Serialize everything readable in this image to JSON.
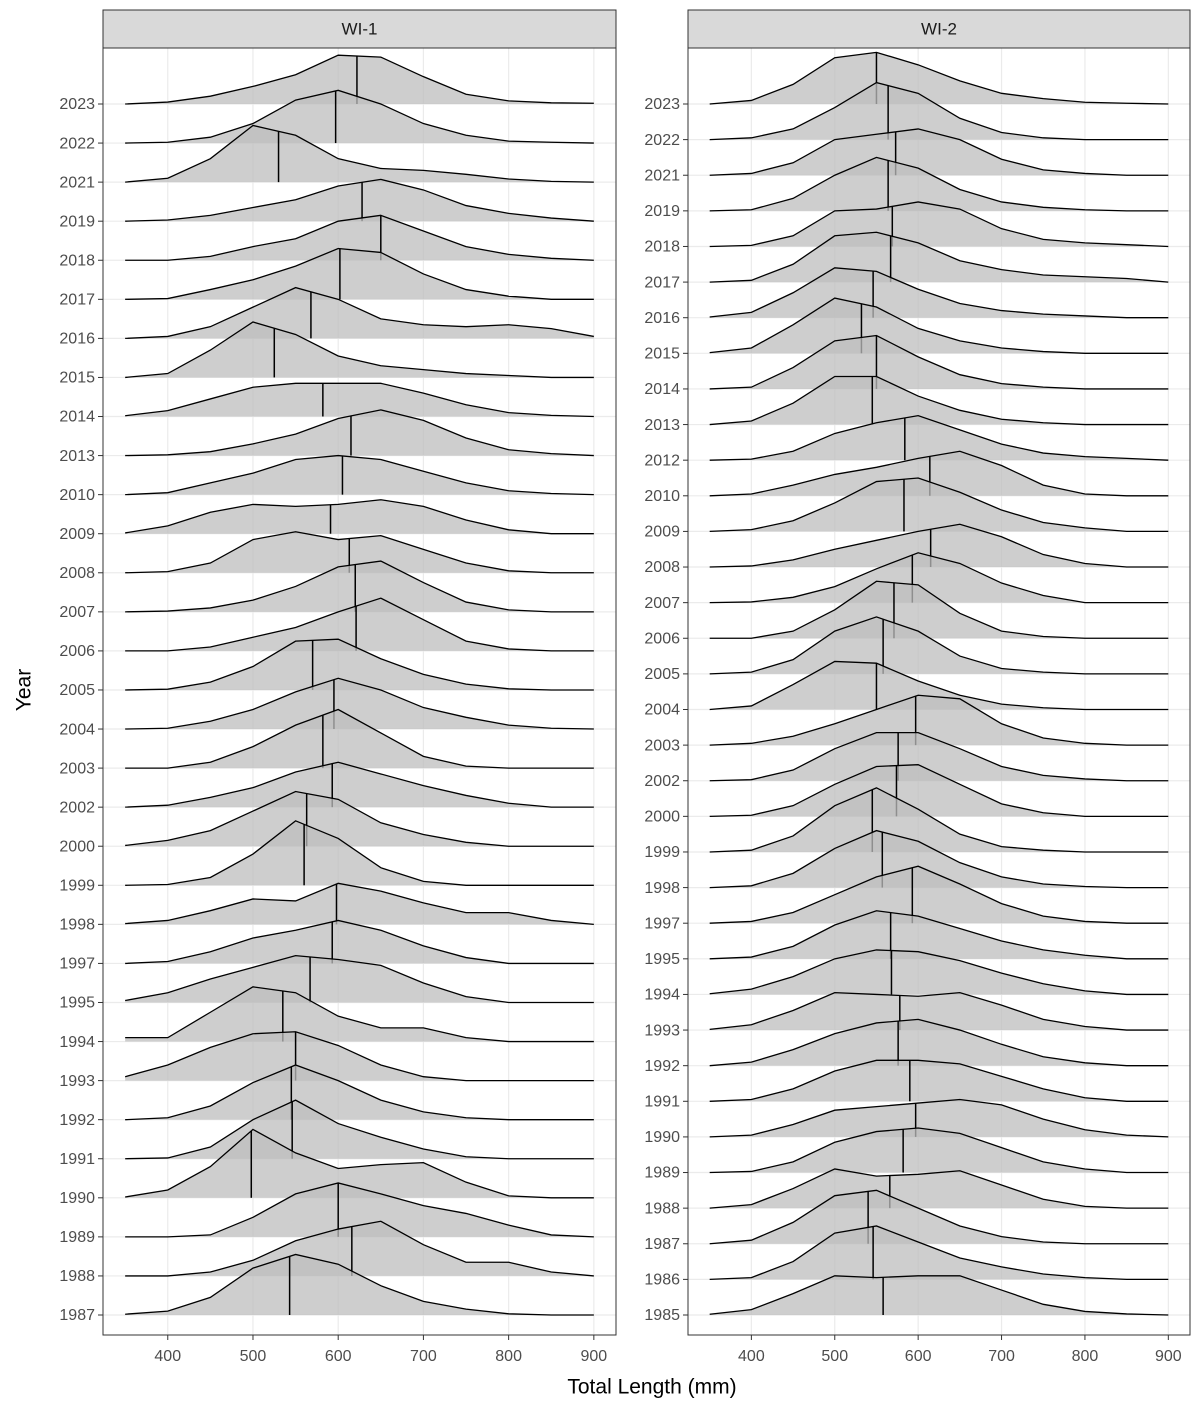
{
  "chart_data": {
    "type": "ridgeline",
    "xlabel": "Total Length (mm)",
    "ylabel": "Year",
    "xlim": [
      324,
      926
    ],
    "xticks": [
      400,
      500,
      600,
      700,
      800,
      900
    ],
    "grid": true,
    "fill": "#bdbdbd",
    "line_color": "#000000",
    "density_x": [
      350,
      400,
      450,
      500,
      550,
      600,
      650,
      700,
      750,
      800,
      850,
      900
    ],
    "panels": [
      {
        "title": "WI-1",
        "categories": [
          "2023",
          "2022",
          "2021",
          "2019",
          "2018",
          "2017",
          "2016",
          "2015",
          "2014",
          "2013",
          "2010",
          "2009",
          "2008",
          "2007",
          "2006",
          "2005",
          "2004",
          "2003",
          "2002",
          "2000",
          "1999",
          "1998",
          "1997",
          "1995",
          "1994",
          "1993",
          "1992",
          "1991",
          "1990",
          "1989",
          "1988",
          "1987"
        ],
        "medians": [
          622,
          597,
          530,
          628,
          650,
          602,
          568,
          525,
          582,
          615,
          605,
          591,
          613,
          620,
          621,
          570,
          595,
          582,
          593,
          563,
          560,
          598,
          593,
          567,
          535,
          550,
          545,
          546,
          498,
          600,
          616,
          543
        ],
        "densities": [
          [
            0,
            0.05,
            0.2,
            0.45,
            0.75,
            1.25,
            1.2,
            0.7,
            0.25,
            0.08,
            0.03,
            0.02
          ],
          [
            0,
            0.02,
            0.15,
            0.5,
            1.1,
            1.35,
            1.0,
            0.5,
            0.2,
            0.05,
            0.02,
            0
          ],
          [
            0,
            0.1,
            0.6,
            1.45,
            1.2,
            0.6,
            0.35,
            0.3,
            0.2,
            0.08,
            0.02,
            0
          ],
          [
            0,
            0.03,
            0.15,
            0.35,
            0.55,
            0.9,
            1.07,
            0.8,
            0.4,
            0.2,
            0.08,
            0
          ],
          [
            0,
            0,
            0.1,
            0.35,
            0.55,
            1.0,
            1.15,
            0.75,
            0.35,
            0.15,
            0.05,
            0
          ],
          [
            0,
            0.02,
            0.25,
            0.5,
            0.85,
            1.3,
            1.2,
            0.65,
            0.25,
            0.08,
            0,
            0
          ],
          [
            0,
            0.05,
            0.3,
            0.8,
            1.3,
            1.0,
            0.5,
            0.35,
            0.3,
            0.35,
            0.25,
            0.05
          ],
          [
            0,
            0.1,
            0.7,
            1.42,
            1.1,
            0.55,
            0.3,
            0.2,
            0.1,
            0.05,
            0,
            0
          ],
          [
            0.02,
            0.15,
            0.45,
            0.75,
            0.85,
            0.85,
            0.85,
            0.6,
            0.3,
            0.1,
            0.03,
            0
          ],
          [
            0,
            0.02,
            0.1,
            0.3,
            0.55,
            0.95,
            1.17,
            0.9,
            0.45,
            0.15,
            0.05,
            0
          ],
          [
            0,
            0.05,
            0.3,
            0.55,
            0.9,
            1.0,
            0.9,
            0.6,
            0.3,
            0.1,
            0.03,
            0
          ],
          [
            0.02,
            0.2,
            0.55,
            0.75,
            0.7,
            0.75,
            0.87,
            0.7,
            0.35,
            0.1,
            0,
            0
          ],
          [
            0,
            0.03,
            0.25,
            0.85,
            1.05,
            0.85,
            0.95,
            0.6,
            0.25,
            0.05,
            0,
            0
          ],
          [
            0,
            0.02,
            0.1,
            0.3,
            0.65,
            1.15,
            1.3,
            0.75,
            0.25,
            0.05,
            0,
            0
          ],
          [
            0,
            0,
            0.1,
            0.35,
            0.6,
            1.0,
            1.35,
            0.8,
            0.25,
            0.05,
            0,
            0
          ],
          [
            0,
            0.02,
            0.2,
            0.6,
            1.25,
            1.3,
            0.8,
            0.4,
            0.15,
            0.03,
            0,
            0
          ],
          [
            0,
            0.02,
            0.2,
            0.5,
            0.95,
            1.3,
            1.0,
            0.55,
            0.3,
            0.1,
            0.02,
            0
          ],
          [
            0,
            0,
            0.15,
            0.55,
            1.1,
            1.5,
            0.9,
            0.3,
            0.05,
            0,
            0,
            0
          ],
          [
            0,
            0.05,
            0.25,
            0.5,
            0.9,
            1.15,
            0.85,
            0.55,
            0.3,
            0.1,
            0,
            0
          ],
          [
            0.02,
            0.15,
            0.4,
            0.9,
            1.4,
            1.2,
            0.6,
            0.3,
            0.1,
            0,
            0,
            0
          ],
          [
            0,
            0.02,
            0.2,
            0.8,
            1.65,
            1.2,
            0.45,
            0.1,
            0,
            0,
            0,
            0
          ],
          [
            0.02,
            0.1,
            0.35,
            0.65,
            0.6,
            1.05,
            0.85,
            0.55,
            0.3,
            0.3,
            0.1,
            0
          ],
          [
            0,
            0.05,
            0.3,
            0.65,
            0.85,
            1.1,
            0.85,
            0.45,
            0.15,
            0,
            0,
            0
          ],
          [
            0.05,
            0.25,
            0.6,
            0.9,
            1.2,
            1.1,
            0.95,
            0.5,
            0.15,
            0,
            0,
            0
          ],
          [
            0.1,
            0.1,
            0.75,
            1.4,
            1.25,
            0.65,
            0.35,
            0.35,
            0.1,
            0,
            0,
            0
          ],
          [
            0.1,
            0.4,
            0.85,
            1.2,
            1.25,
            0.9,
            0.4,
            0.1,
            0,
            0,
            0,
            0
          ],
          [
            0,
            0.05,
            0.35,
            0.95,
            1.4,
            1.0,
            0.5,
            0.2,
            0.05,
            0,
            0,
            0
          ],
          [
            0,
            0.02,
            0.3,
            1.0,
            1.5,
            0.9,
            0.55,
            0.25,
            0.05,
            0,
            0,
            0
          ],
          [
            0.02,
            0.2,
            0.8,
            1.75,
            1.15,
            0.75,
            0.85,
            0.9,
            0.4,
            0.05,
            0,
            0
          ],
          [
            0,
            0,
            0.05,
            0.5,
            1.1,
            1.38,
            1.1,
            0.8,
            0.6,
            0.3,
            0.05,
            0
          ],
          [
            0,
            0,
            0.1,
            0.4,
            0.9,
            1.2,
            1.4,
            0.8,
            0.35,
            0.35,
            0.1,
            0
          ],
          [
            0.02,
            0.1,
            0.45,
            1.2,
            1.55,
            1.3,
            0.75,
            0.35,
            0.15,
            0.03,
            0,
            0
          ]
        ]
      },
      {
        "title": "WI-2",
        "categories": [
          "2023",
          "2022",
          "2021",
          "2019",
          "2018",
          "2017",
          "2016",
          "2015",
          "2014",
          "2013",
          "2012",
          "2010",
          "2009",
          "2008",
          "2007",
          "2006",
          "2005",
          "2004",
          "2003",
          "2002",
          "2000",
          "1999",
          "1998",
          "1997",
          "1995",
          "1994",
          "1993",
          "1992",
          "1991",
          "1990",
          "1989",
          "1988",
          "1987",
          "1986",
          "1985"
        ],
        "medians": [
          550,
          564,
          573,
          564,
          569,
          567,
          546,
          532,
          550,
          545,
          584,
          614,
          583,
          615,
          593,
          571,
          558,
          550,
          597,
          576,
          574,
          545,
          557,
          593,
          567,
          568,
          578,
          576,
          590,
          597,
          582,
          566,
          540,
          546,
          558
        ],
        "densities": [
          [
            0,
            0.1,
            0.55,
            1.3,
            1.45,
            1.1,
            0.65,
            0.3,
            0.15,
            0.05,
            0.02,
            0
          ],
          [
            0,
            0.05,
            0.3,
            0.9,
            1.6,
            1.3,
            0.6,
            0.2,
            0.05,
            0,
            0,
            0
          ],
          [
            0,
            0.05,
            0.35,
            1.0,
            1.15,
            1.3,
            1.0,
            0.45,
            0.15,
            0.05,
            0,
            0
          ],
          [
            0,
            0.03,
            0.35,
            1.0,
            1.5,
            1.2,
            0.6,
            0.25,
            0.1,
            0.03,
            0,
            0
          ],
          [
            0,
            0.03,
            0.3,
            1.0,
            1.05,
            1.25,
            1.05,
            0.5,
            0.2,
            0.1,
            0.05,
            0
          ],
          [
            0,
            0.05,
            0.5,
            1.3,
            1.4,
            1.1,
            0.6,
            0.35,
            0.2,
            0.15,
            0.1,
            0
          ],
          [
            0.02,
            0.15,
            0.7,
            1.4,
            1.3,
            0.8,
            0.4,
            0.2,
            0.1,
            0.05,
            0,
            0
          ],
          [
            0.02,
            0.15,
            0.8,
            1.55,
            1.3,
            0.7,
            0.35,
            0.15,
            0.05,
            0,
            0,
            0
          ],
          [
            0,
            0.05,
            0.6,
            1.35,
            1.5,
            0.9,
            0.4,
            0.15,
            0.05,
            0,
            0,
            0
          ],
          [
            0,
            0.1,
            0.6,
            1.35,
            1.35,
            0.8,
            0.4,
            0.15,
            0.05,
            0,
            0,
            0
          ],
          [
            0,
            0.03,
            0.25,
            0.75,
            1.05,
            1.25,
            0.85,
            0.45,
            0.2,
            0.1,
            0.05,
            0
          ],
          [
            0,
            0.05,
            0.3,
            0.6,
            0.8,
            1.05,
            1.25,
            0.85,
            0.3,
            0.05,
            0,
            0
          ],
          [
            0,
            0.05,
            0.3,
            0.8,
            1.4,
            1.5,
            1.1,
            0.6,
            0.25,
            0.1,
            0,
            0
          ],
          [
            0,
            0.03,
            0.2,
            0.5,
            0.75,
            1.0,
            1.2,
            0.85,
            0.35,
            0.1,
            0,
            0
          ],
          [
            0,
            0.02,
            0.15,
            0.45,
            0.95,
            1.4,
            1.1,
            0.55,
            0.2,
            0,
            0,
            0
          ],
          [
            0,
            0,
            0.2,
            0.8,
            1.6,
            1.5,
            0.7,
            0.2,
            0.05,
            0,
            0,
            0
          ],
          [
            0,
            0.05,
            0.4,
            1.2,
            1.6,
            1.2,
            0.5,
            0.15,
            0.05,
            0,
            0,
            0
          ],
          [
            0,
            0.1,
            0.7,
            1.35,
            1.3,
            0.8,
            0.4,
            0.15,
            0.05,
            0,
            0,
            0
          ],
          [
            0,
            0.05,
            0.25,
            0.6,
            1.0,
            1.4,
            1.3,
            0.6,
            0.2,
            0.05,
            0,
            0
          ],
          [
            0,
            0.03,
            0.3,
            0.9,
            1.35,
            1.35,
            0.9,
            0.4,
            0.15,
            0.05,
            0,
            0
          ],
          [
            0,
            0.03,
            0.3,
            0.9,
            1.4,
            1.45,
            0.9,
            0.35,
            0.1,
            0,
            0,
            0
          ],
          [
            0,
            0.05,
            0.45,
            1.3,
            1.8,
            1.2,
            0.5,
            0.15,
            0.05,
            0,
            0,
            0
          ],
          [
            0,
            0.05,
            0.4,
            1.1,
            1.6,
            1.3,
            0.7,
            0.3,
            0.1,
            0.03,
            0,
            0
          ],
          [
            0,
            0.05,
            0.3,
            0.8,
            1.3,
            1.6,
            1.1,
            0.55,
            0.2,
            0.05,
            0,
            0
          ],
          [
            0,
            0.05,
            0.35,
            0.95,
            1.35,
            1.2,
            0.85,
            0.5,
            0.25,
            0.1,
            0,
            0
          ],
          [
            0.02,
            0.15,
            0.5,
            1.0,
            1.25,
            1.2,
            0.95,
            0.6,
            0.3,
            0.1,
            0,
            0
          ],
          [
            0.02,
            0.15,
            0.55,
            1.05,
            1.0,
            0.95,
            1.05,
            0.7,
            0.3,
            0.1,
            0,
            0
          ],
          [
            0,
            0.1,
            0.45,
            0.9,
            1.2,
            1.3,
            1.0,
            0.6,
            0.25,
            0.08,
            0,
            0
          ],
          [
            0,
            0.05,
            0.35,
            0.85,
            1.15,
            1.15,
            1.05,
            0.7,
            0.35,
            0.1,
            0,
            0
          ],
          [
            0,
            0.05,
            0.35,
            0.75,
            0.85,
            0.95,
            1.05,
            0.9,
            0.5,
            0.2,
            0.05,
            0
          ],
          [
            0,
            0.03,
            0.3,
            0.85,
            1.15,
            1.25,
            1.1,
            0.7,
            0.3,
            0.1,
            0,
            0
          ],
          [
            0,
            0.1,
            0.55,
            1.1,
            0.9,
            0.95,
            1.05,
            0.65,
            0.25,
            0.05,
            0,
            0
          ],
          [
            0,
            0.1,
            0.6,
            1.35,
            1.5,
            1.0,
            0.5,
            0.2,
            0.05,
            0,
            0,
            0
          ],
          [
            0,
            0.05,
            0.5,
            1.3,
            1.5,
            1.05,
            0.6,
            0.35,
            0.15,
            0.05,
            0,
            0
          ],
          [
            0.02,
            0.15,
            0.6,
            1.1,
            1.05,
            1.1,
            1.1,
            0.7,
            0.3,
            0.1,
            0.03,
            0
          ]
        ]
      }
    ]
  }
}
